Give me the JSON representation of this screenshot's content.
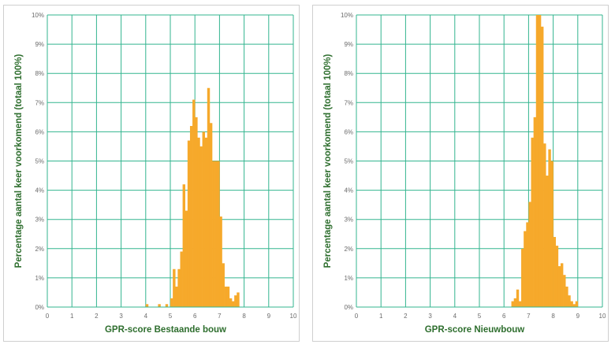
{
  "chart_data": [
    {
      "type": "bar",
      "title": "",
      "xlabel": "GPR-score Bestaande bouw",
      "ylabel": "Percentage aantal keer voorkomend (totaal 100%)",
      "xlim": [
        0,
        10
      ],
      "ylim": [
        0,
        10
      ],
      "x_ticks": [
        "0",
        "1",
        "2",
        "3",
        "4",
        "5",
        "6",
        "7",
        "8",
        "9",
        "10"
      ],
      "y_ticks": [
        "0%",
        "1%",
        "2%",
        "3%",
        "4%",
        "5%",
        "6%",
        "7%",
        "8%",
        "9%",
        "10%"
      ],
      "grid": true,
      "legend": "none",
      "bar_width": 0.1,
      "color": "#f6a92b",
      "grid_color": "#33b58f",
      "points": [
        {
          "x": 4.05,
          "y": 0.1
        },
        {
          "x": 4.55,
          "y": 0.1
        },
        {
          "x": 4.85,
          "y": 0.1
        },
        {
          "x": 5.05,
          "y": 0.3
        },
        {
          "x": 5.15,
          "y": 1.3
        },
        {
          "x": 5.25,
          "y": 0.7
        },
        {
          "x": 5.35,
          "y": 1.3
        },
        {
          "x": 5.45,
          "y": 1.9
        },
        {
          "x": 5.55,
          "y": 4.2
        },
        {
          "x": 5.65,
          "y": 3.3
        },
        {
          "x": 5.75,
          "y": 5.7
        },
        {
          "x": 5.85,
          "y": 6.2
        },
        {
          "x": 5.95,
          "y": 7.1
        },
        {
          "x": 6.05,
          "y": 6.5
        },
        {
          "x": 6.15,
          "y": 5.8
        },
        {
          "x": 6.25,
          "y": 5.5
        },
        {
          "x": 6.35,
          "y": 6.0
        },
        {
          "x": 6.45,
          "y": 5.8
        },
        {
          "x": 6.55,
          "y": 7.5
        },
        {
          "x": 6.65,
          "y": 6.3
        },
        {
          "x": 6.75,
          "y": 5.0
        },
        {
          "x": 6.85,
          "y": 5.0
        },
        {
          "x": 6.95,
          "y": 5.0
        },
        {
          "x": 7.05,
          "y": 3.1
        },
        {
          "x": 7.15,
          "y": 1.5
        },
        {
          "x": 7.25,
          "y": 0.7
        },
        {
          "x": 7.35,
          "y": 0.7
        },
        {
          "x": 7.45,
          "y": 0.3
        },
        {
          "x": 7.55,
          "y": 0.2
        },
        {
          "x": 7.65,
          "y": 0.4
        },
        {
          "x": 7.75,
          "y": 0.5
        }
      ]
    },
    {
      "type": "bar",
      "title": "",
      "xlabel": "GPR-score Nieuwbouw",
      "ylabel": "Percentage aantal keer voorkomend (totaal 100%)",
      "xlim": [
        0,
        10
      ],
      "ylim": [
        0,
        10
      ],
      "x_ticks": [
        "0",
        "1",
        "2",
        "3",
        "4",
        "5",
        "6",
        "7",
        "8",
        "9",
        "10"
      ],
      "y_ticks": [
        "0%",
        "1%",
        "2%",
        "3%",
        "4%",
        "5%",
        "6%",
        "7%",
        "8%",
        "9%",
        "10%"
      ],
      "grid": true,
      "legend": "none",
      "bar_width": 0.1,
      "color": "#f6a92b",
      "grid_color": "#33b58f",
      "points": [
        {
          "x": 6.35,
          "y": 0.2
        },
        {
          "x": 6.45,
          "y": 0.3
        },
        {
          "x": 6.55,
          "y": 0.6
        },
        {
          "x": 6.65,
          "y": 0.2
        },
        {
          "x": 6.75,
          "y": 2.0
        },
        {
          "x": 6.85,
          "y": 2.6
        },
        {
          "x": 6.95,
          "y": 2.9
        },
        {
          "x": 7.05,
          "y": 3.6
        },
        {
          "x": 7.15,
          "y": 5.8
        },
        {
          "x": 7.25,
          "y": 6.5
        },
        {
          "x": 7.35,
          "y": 10.0
        },
        {
          "x": 7.45,
          "y": 10.0
        },
        {
          "x": 7.55,
          "y": 9.6
        },
        {
          "x": 7.65,
          "y": 5.6
        },
        {
          "x": 7.75,
          "y": 4.5
        },
        {
          "x": 7.85,
          "y": 5.4
        },
        {
          "x": 7.95,
          "y": 5.0
        },
        {
          "x": 8.05,
          "y": 2.4
        },
        {
          "x": 8.15,
          "y": 2.1
        },
        {
          "x": 8.25,
          "y": 1.4
        },
        {
          "x": 8.35,
          "y": 1.5
        },
        {
          "x": 8.45,
          "y": 1.1
        },
        {
          "x": 8.55,
          "y": 0.7
        },
        {
          "x": 8.65,
          "y": 0.4
        },
        {
          "x": 8.75,
          "y": 0.2
        },
        {
          "x": 8.85,
          "y": 0.1
        },
        {
          "x": 8.95,
          "y": 0.2
        }
      ]
    }
  ]
}
